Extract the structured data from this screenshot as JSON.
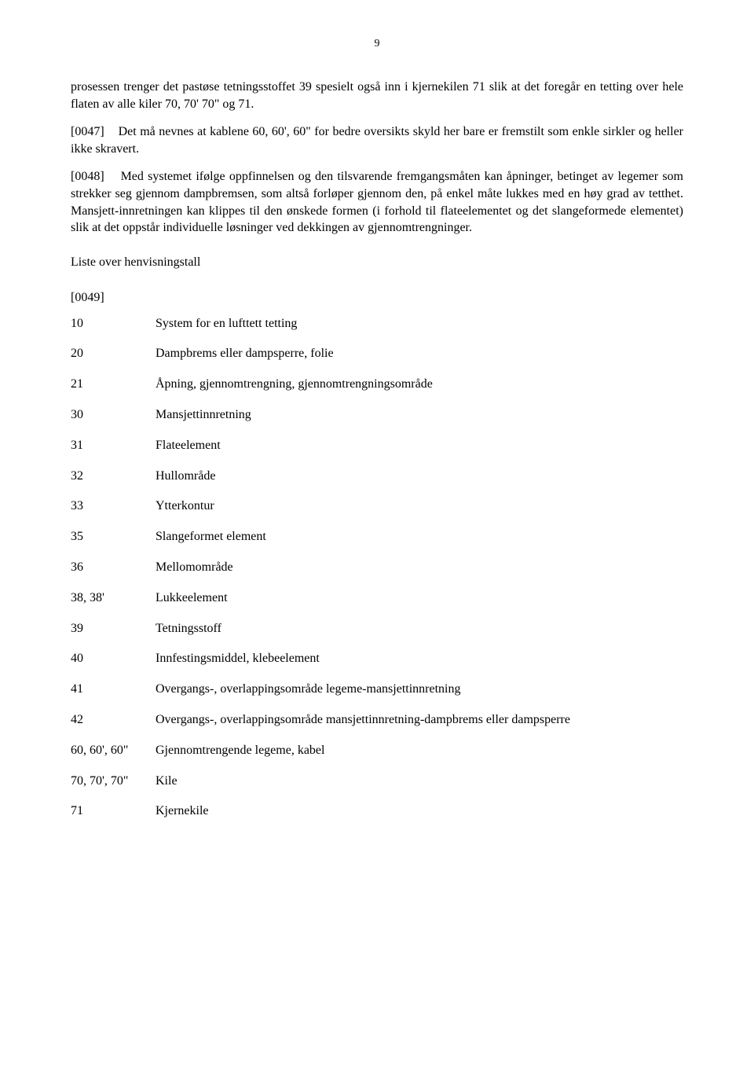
{
  "page_number": "9",
  "paragraph1": "prosessen trenger det pastøse tetningsstoffet 39 spesielt også inn i kjernekilen 71 slik at det foregår en tetting over hele flaten av alle kiler 70, 70' 70\" og 71.",
  "paragraph2": "[0047]    Det må nevnes at kablene 60, 60', 60\" for bedre oversikts skyld her bare er fremstilt som enkle sirkler og heller ikke skravert.",
  "paragraph3": "[0048]    Med systemet ifølge oppfinnelsen og den tilsvarende fremgangsmåten kan åpninger, betinget av legemer som strekker seg gjennom dampbremsen, som altså forløper gjennom den, på enkel måte lukkes med en høy grad av tetthet. Mansjett-innretningen kan klippes til den ønskede formen (i forhold til flateelementet og det slangeformede elementet) slik at det oppstår individuelle løsninger ved dekkingen av gjennomtrengninger.",
  "section_title": "Liste over henvisningstall",
  "rows": [
    {
      "num": "[0049]",
      "desc": ""
    },
    {
      "num": "10",
      "desc": "System for en lufttett tetting"
    },
    {
      "num": "20",
      "desc": "Dampbrems eller dampsperre, folie"
    },
    {
      "num": "21",
      "desc": "Åpning, gjennomtrengning, gjennomtrengningsområde"
    },
    {
      "num": "30",
      "desc": "Mansjettinnretning"
    },
    {
      "num": "31",
      "desc": "Flateelement"
    },
    {
      "num": "32",
      "desc": "Hullområde"
    },
    {
      "num": "33",
      "desc": "Ytterkontur"
    },
    {
      "num": "35",
      "desc": "Slangeformet element"
    },
    {
      "num": "36",
      "desc": "Mellomområde"
    },
    {
      "num": "38, 38'",
      "desc": "Lukkeelement"
    },
    {
      "num": "39",
      "desc": "Tetningsstoff"
    },
    {
      "num": "40",
      "desc": "Innfestingsmiddel, klebeelement"
    },
    {
      "num": "41",
      "desc": "Overgangs-, overlappingsområde legeme-mansjettinnretning"
    },
    {
      "num": "42",
      "desc": "Overgangs-, overlappingsområde mansjettinnretning-dampbrems eller dampsperre"
    },
    {
      "num": "60, 60', 60\"",
      "desc": "Gjennomtrengende legeme, kabel"
    },
    {
      "num": "70, 70', 70\"",
      "desc": "Kile"
    },
    {
      "num": "71",
      "desc": "Kjernekile"
    }
  ]
}
